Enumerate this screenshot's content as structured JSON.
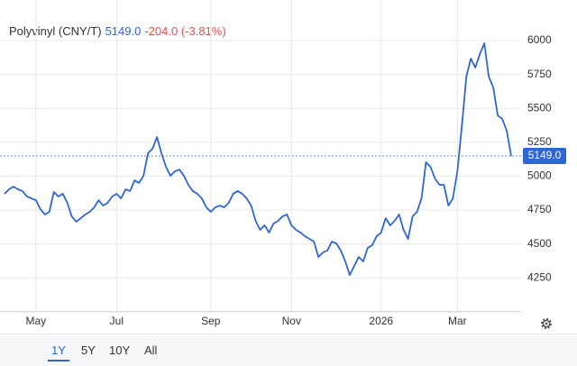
{
  "header": {
    "name": "Polyvinyl (CNY/T)",
    "last": "5149.0",
    "change": "-204.0 (-3.81%)"
  },
  "chart_data": {
    "type": "line",
    "categories": [
      null,
      null,
      null,
      null,
      null,
      null,
      null,
      "May",
      null,
      null,
      null,
      null,
      null,
      null,
      null,
      null,
      null,
      null,
      null,
      null,
      null,
      null,
      null,
      null,
      null,
      "Jul",
      null,
      null,
      null,
      null,
      null,
      null,
      null,
      null,
      null,
      null,
      null,
      null,
      null,
      null,
      null,
      null,
      null,
      null,
      null,
      null,
      "Sep",
      null,
      null,
      null,
      null,
      null,
      null,
      null,
      null,
      null,
      null,
      null,
      null,
      null,
      null,
      null,
      null,
      null,
      "Nov",
      null,
      null,
      null,
      null,
      null,
      null,
      null,
      null,
      null,
      null,
      null,
      null,
      null,
      null,
      null,
      null,
      null,
      null,
      null,
      "2026",
      null,
      null,
      null,
      null,
      null,
      null,
      null,
      null,
      null,
      null,
      null,
      null,
      null,
      null,
      null,
      null,
      "Mar",
      null,
      null,
      null,
      null,
      null,
      null,
      null,
      null,
      null,
      null,
      null,
      null
    ],
    "series": [
      {
        "name": "Polyvinyl",
        "color": "#2f66d4",
        "values": [
          4870,
          4903,
          4923,
          4903,
          4890,
          4850,
          4836,
          4823,
          4757,
          4717,
          4737,
          4883,
          4850,
          4870,
          4803,
          4703,
          4664,
          4690,
          4717,
          4737,
          4770,
          4823,
          4783,
          4803,
          4850,
          4870,
          4836,
          4903,
          4890,
          4969,
          4950,
          5003,
          5169,
          5202,
          5289,
          5169,
          5069,
          5003,
          5036,
          5049,
          5003,
          4936,
          4890,
          4870,
          4836,
          4770,
          4737,
          4770,
          4783,
          4770,
          4803,
          4870,
          4890,
          4870,
          4836,
          4783,
          4670,
          4604,
          4637,
          4584,
          4650,
          4670,
          4703,
          4717,
          4637,
          4604,
          4584,
          4557,
          4537,
          4517,
          4404,
          4437,
          4451,
          4517,
          4504,
          4451,
          4371,
          4271,
          4338,
          4404,
          4371,
          4471,
          4491,
          4557,
          4584,
          4690,
          4637,
          4670,
          4717,
          4604,
          4537,
          4703,
          4737,
          4836,
          5102,
          5069,
          4983,
          4936,
          4936,
          4783,
          4836,
          5036,
          5369,
          5734,
          5867,
          5801,
          5900,
          5980,
          5734,
          5654,
          5448,
          5422,
          5335,
          5149
        ]
      }
    ],
    "ylim": [
      4000,
      6250
    ],
    "yticks": [
      4250,
      4500,
      4750,
      5000,
      5250,
      5500,
      5750,
      6000
    ],
    "grid": true
  },
  "range_buttons": [
    "1Y",
    "5Y",
    "10Y",
    "All"
  ]
}
